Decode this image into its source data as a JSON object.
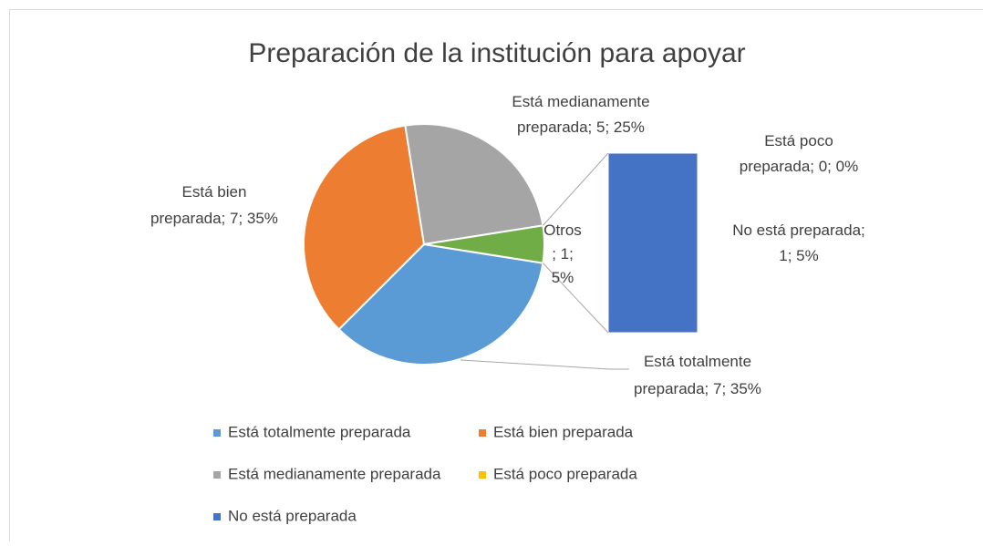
{
  "chart_data": {
    "type": "pie",
    "title": "Preparación de la institución para apoyar",
    "categories": [
      "Está totalmente preparada",
      "Está bien preparada",
      "Está medianamente preparada",
      "Está poco preparada",
      "No está preparada"
    ],
    "values": [
      7,
      7,
      5,
      0,
      1
    ],
    "value_labels": [
      "Está totalmente preparada; 7; 35%",
      "Está bien preparada; 7; 35%",
      "Está medianamente preparada; 5; 25%",
      "Está poco preparada; 0; 0%",
      "No está preparada; 1; 5%"
    ],
    "colors": [
      "#5b9bd5",
      "#ed7d31",
      "#a5a5a5",
      "#ffc000",
      "#4472c4"
    ],
    "other": {
      "value": 1,
      "value_label": "Otros; 1; 5%",
      "color": "#70ad47"
    },
    "legend": "bottom"
  }
}
